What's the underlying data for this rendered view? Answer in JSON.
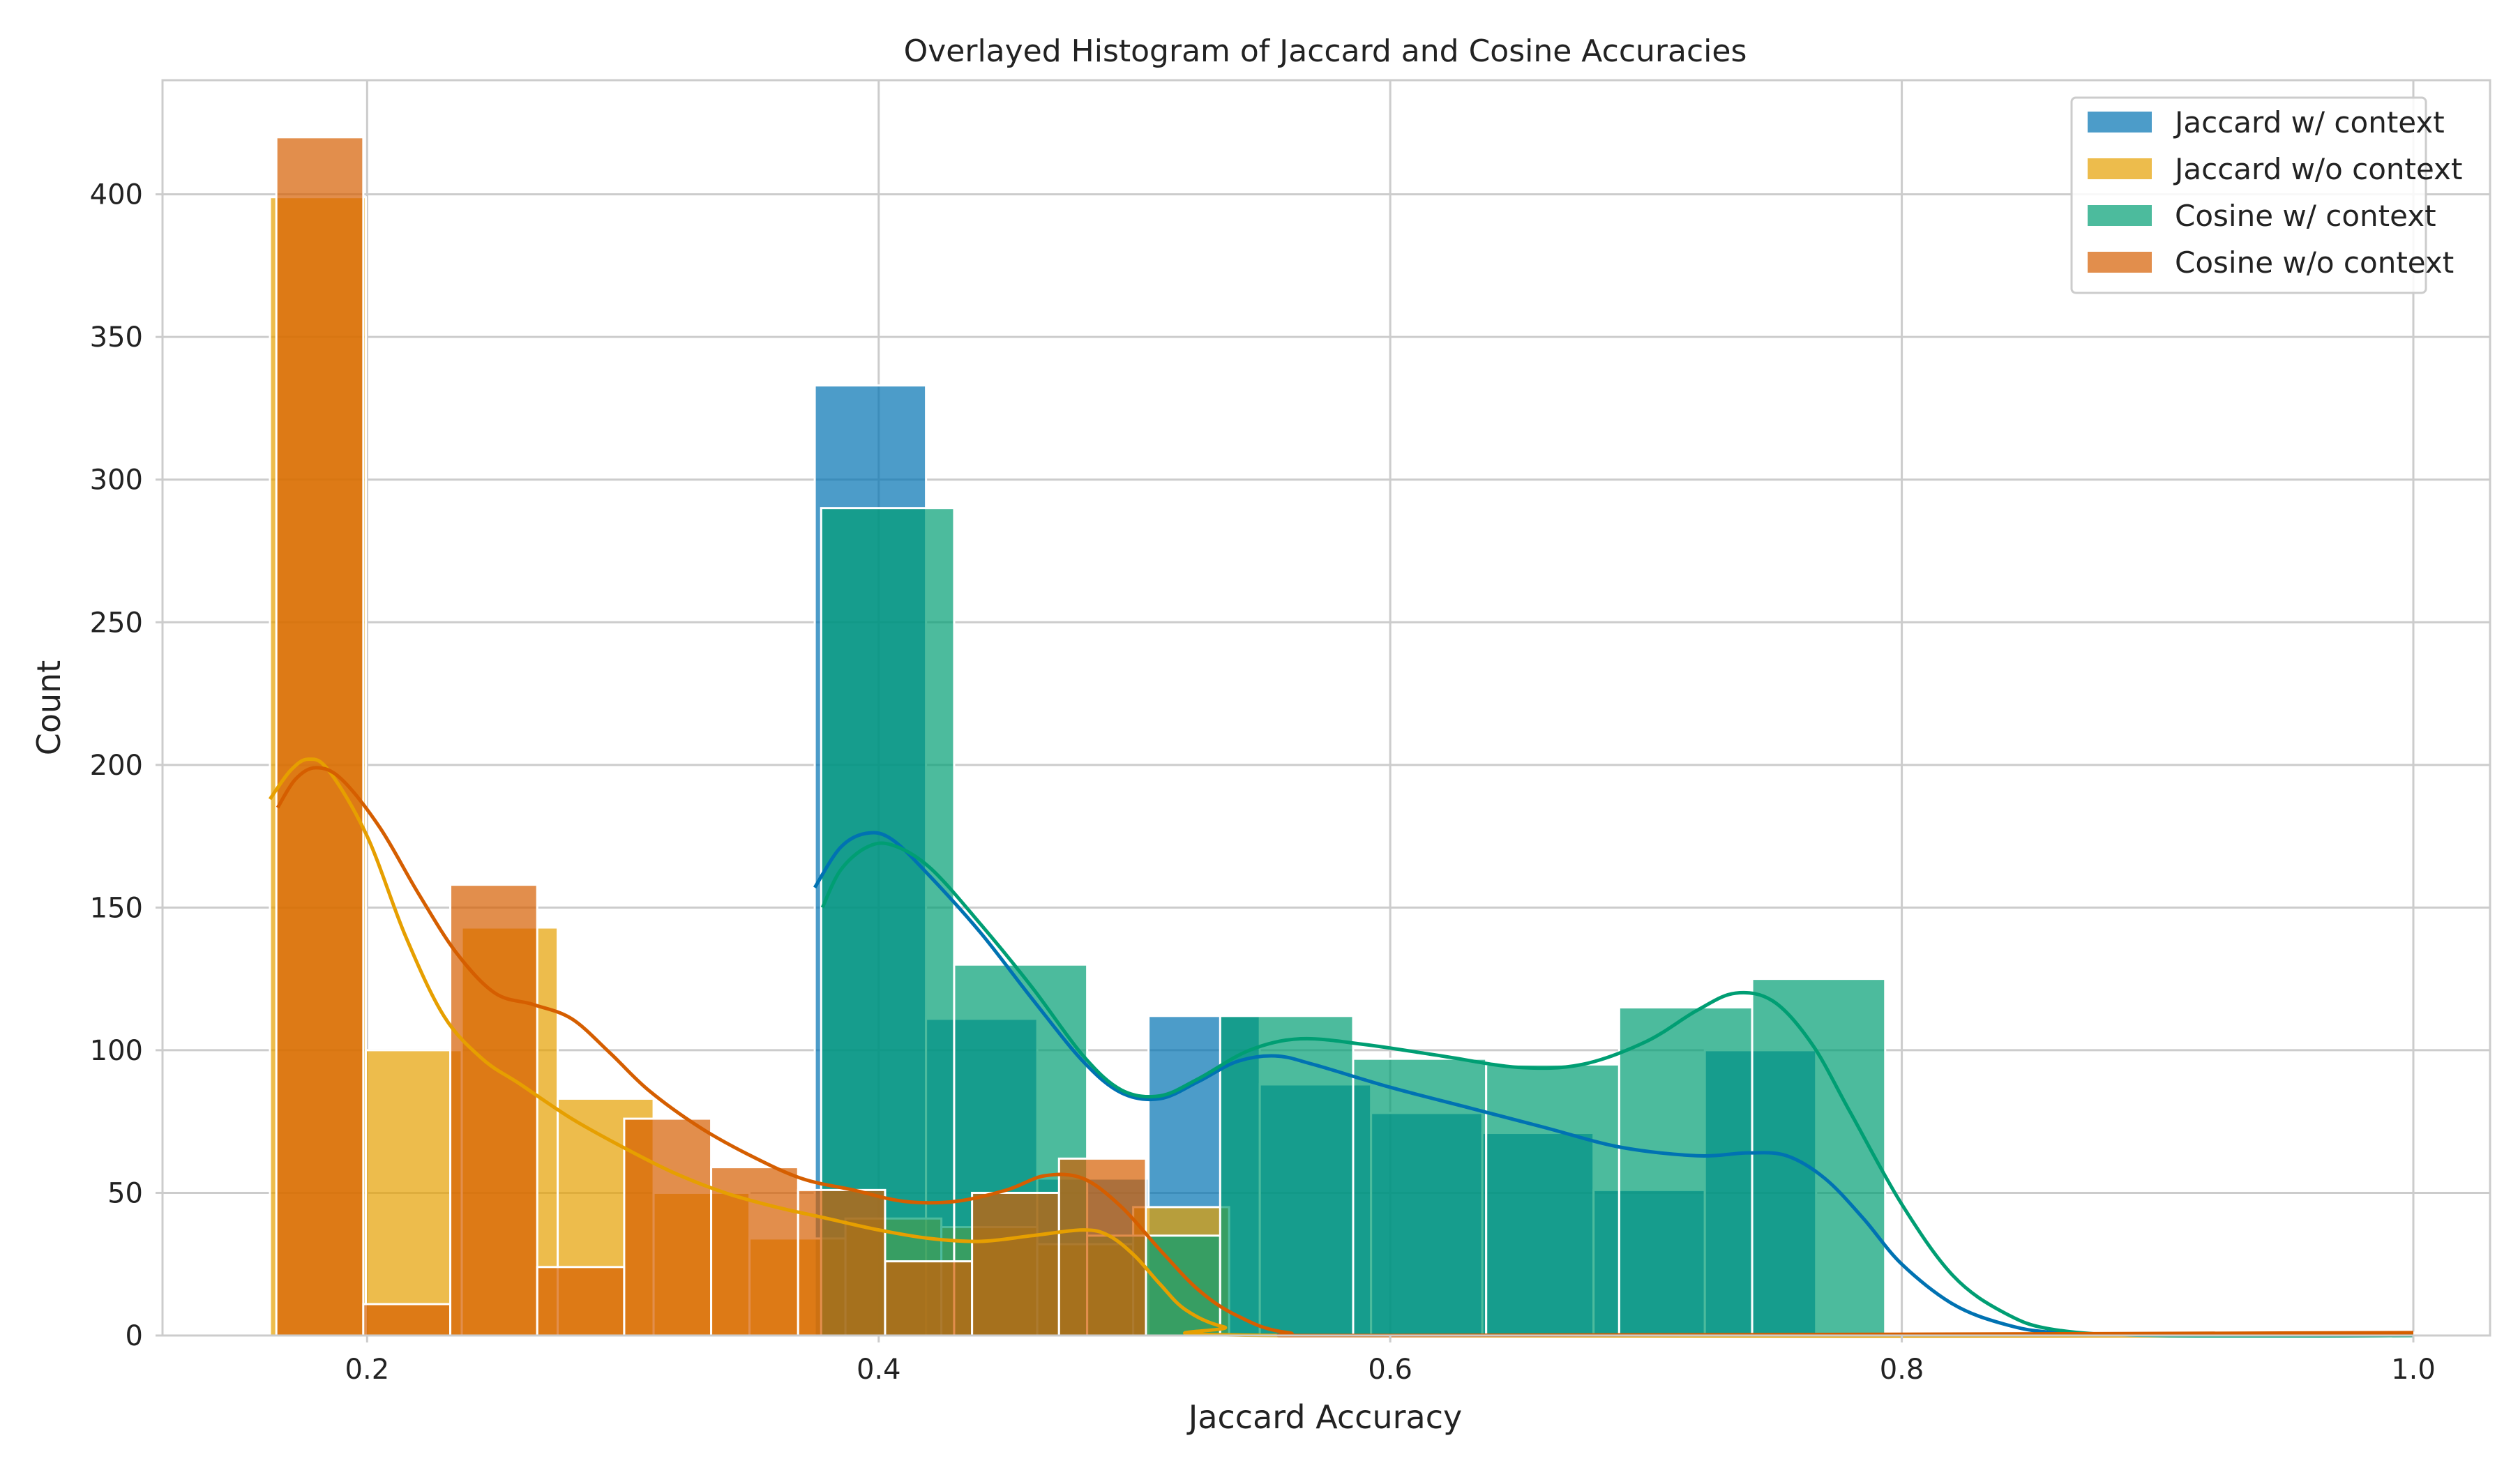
{
  "chart_data": {
    "type": "histogram",
    "title": "Overlayed Histogram of Jaccard and Cosine Accuracies",
    "xlabel": "Jaccard Accuracy",
    "ylabel": "Count",
    "xlim": [
      0.12,
      1.03
    ],
    "ylim": [
      0,
      440
    ],
    "xticks": [
      "0.2",
      "0.4",
      "0.6",
      "0.8",
      "1.0"
    ],
    "xtick_values": [
      0.2,
      0.4,
      0.6,
      0.8,
      1.0
    ],
    "yticks": [
      "0",
      "50",
      "100",
      "150",
      "200",
      "250",
      "300",
      "350",
      "400"
    ],
    "ytick_values": [
      0,
      50,
      100,
      150,
      200,
      250,
      300,
      350,
      400
    ],
    "grid": true,
    "legend_position": "top-right",
    "series": [
      {
        "name": "Jaccard w/ context",
        "color": "#0072b2",
        "bins": [
          {
            "x0": 0.375,
            "x1": 0.4185,
            "count": 333
          },
          {
            "x0": 0.4185,
            "x1": 0.462,
            "count": 111
          },
          {
            "x0": 0.462,
            "x1": 0.5055,
            "count": 55
          },
          {
            "x0": 0.5055,
            "x1": 0.549,
            "count": 112
          },
          {
            "x0": 0.549,
            "x1": 0.5925,
            "count": 88
          },
          {
            "x0": 0.5925,
            "x1": 0.636,
            "count": 78
          },
          {
            "x0": 0.636,
            "x1": 0.6795,
            "count": 71
          },
          {
            "x0": 0.6795,
            "x1": 0.723,
            "count": 51
          },
          {
            "x0": 0.723,
            "x1": 0.7665,
            "count": 100
          }
        ],
        "kde": [
          [
            0.375,
            157
          ],
          [
            0.385,
            171
          ],
          [
            0.395,
            176
          ],
          [
            0.405,
            174
          ],
          [
            0.42,
            161
          ],
          [
            0.44,
            141
          ],
          [
            0.46,
            118
          ],
          [
            0.48,
            96
          ],
          [
            0.495,
            85
          ],
          [
            0.51,
            83
          ],
          [
            0.525,
            89
          ],
          [
            0.54,
            96
          ],
          [
            0.555,
            98
          ],
          [
            0.57,
            95
          ],
          [
            0.6,
            87
          ],
          [
            0.63,
            80
          ],
          [
            0.66,
            73
          ],
          [
            0.69,
            66
          ],
          [
            0.72,
            63
          ],
          [
            0.74,
            64
          ],
          [
            0.755,
            63
          ],
          [
            0.77,
            55
          ],
          [
            0.785,
            41
          ],
          [
            0.8,
            25
          ],
          [
            0.82,
            11
          ],
          [
            0.84,
            4
          ],
          [
            0.86,
            1
          ],
          [
            0.9,
            0
          ],
          [
            1.0,
            0
          ]
        ]
      },
      {
        "name": "Jaccard w/o context",
        "color": "#e69f00",
        "bins": [
          {
            "x0": 0.162,
            "x1": 0.1995,
            "count": 399
          },
          {
            "x0": 0.1995,
            "x1": 0.237,
            "count": 100
          },
          {
            "x0": 0.237,
            "x1": 0.2745,
            "count": 143
          },
          {
            "x0": 0.2745,
            "x1": 0.312,
            "count": 83
          },
          {
            "x0": 0.312,
            "x1": 0.3495,
            "count": 50
          },
          {
            "x0": 0.3495,
            "x1": 0.387,
            "count": 34
          },
          {
            "x0": 0.387,
            "x1": 0.4245,
            "count": 41
          },
          {
            "x0": 0.4245,
            "x1": 0.462,
            "count": 38
          },
          {
            "x0": 0.462,
            "x1": 0.4995,
            "count": 32
          },
          {
            "x0": 0.4995,
            "x1": 0.537,
            "count": 45
          }
        ],
        "kde": [
          [
            0.162,
            188
          ],
          [
            0.17,
            198
          ],
          [
            0.177,
            202
          ],
          [
            0.185,
            198
          ],
          [
            0.2,
            175
          ],
          [
            0.215,
            140
          ],
          [
            0.23,
            112
          ],
          [
            0.245,
            97
          ],
          [
            0.26,
            88
          ],
          [
            0.28,
            76
          ],
          [
            0.3,
            66
          ],
          [
            0.32,
            57
          ],
          [
            0.34,
            50
          ],
          [
            0.36,
            45
          ],
          [
            0.38,
            41
          ],
          [
            0.4,
            37
          ],
          [
            0.42,
            34
          ],
          [
            0.44,
            33
          ],
          [
            0.46,
            35
          ],
          [
            0.48,
            37
          ],
          [
            0.49,
            35
          ],
          [
            0.5,
            28
          ],
          [
            0.51,
            18
          ],
          [
            0.52,
            9
          ],
          [
            0.535,
            3
          ],
          [
            0.56,
            0
          ],
          [
            1.0,
            0
          ]
        ]
      },
      {
        "name": "Cosine w/ context",
        "color": "#009e73",
        "bins": [
          {
            "x0": 0.3775,
            "x1": 0.4295,
            "count": 290
          },
          {
            "x0": 0.4295,
            "x1": 0.4815,
            "count": 130
          },
          {
            "x0": 0.4815,
            "x1": 0.5335,
            "count": 35
          },
          {
            "x0": 0.5335,
            "x1": 0.5855,
            "count": 112
          },
          {
            "x0": 0.5855,
            "x1": 0.6375,
            "count": 97
          },
          {
            "x0": 0.6375,
            "x1": 0.6895,
            "count": 95
          },
          {
            "x0": 0.6895,
            "x1": 0.7415,
            "count": 115
          },
          {
            "x0": 0.7415,
            "x1": 0.7935,
            "count": 125
          }
        ],
        "kde": [
          [
            0.378,
            150
          ],
          [
            0.385,
            163
          ],
          [
            0.395,
            171
          ],
          [
            0.405,
            172
          ],
          [
            0.42,
            164
          ],
          [
            0.44,
            144
          ],
          [
            0.46,
            122
          ],
          [
            0.48,
            98
          ],
          [
            0.495,
            86
          ],
          [
            0.51,
            84
          ],
          [
            0.525,
            90
          ],
          [
            0.545,
            100
          ],
          [
            0.565,
            104
          ],
          [
            0.59,
            102
          ],
          [
            0.62,
            98
          ],
          [
            0.65,
            94
          ],
          [
            0.675,
            95
          ],
          [
            0.7,
            103
          ],
          [
            0.72,
            114
          ],
          [
            0.735,
            120
          ],
          [
            0.75,
            117
          ],
          [
            0.765,
            102
          ],
          [
            0.78,
            78
          ],
          [
            0.8,
            46
          ],
          [
            0.82,
            21
          ],
          [
            0.84,
            8
          ],
          [
            0.86,
            2
          ],
          [
            0.9,
            0
          ],
          [
            1.0,
            0
          ]
        ]
      },
      {
        "name": "Cosine w/o context",
        "color": "#d55e00",
        "bins": [
          {
            "x0": 0.1645,
            "x1": 0.1985,
            "count": 420
          },
          {
            "x0": 0.1985,
            "x1": 0.2325,
            "count": 11
          },
          {
            "x0": 0.2325,
            "x1": 0.2665,
            "count": 158
          },
          {
            "x0": 0.2665,
            "x1": 0.3005,
            "count": 24
          },
          {
            "x0": 0.3005,
            "x1": 0.3345,
            "count": 76
          },
          {
            "x0": 0.3345,
            "x1": 0.3685,
            "count": 59
          },
          {
            "x0": 0.3685,
            "x1": 0.4025,
            "count": 51
          },
          {
            "x0": 0.4025,
            "x1": 0.4365,
            "count": 26
          },
          {
            "x0": 0.4365,
            "x1": 0.4705,
            "count": 50
          },
          {
            "x0": 0.4705,
            "x1": 0.5045,
            "count": 62
          },
          {
            "x0": 0.98,
            "x1": 1.0,
            "count": 1
          }
        ],
        "kde": [
          [
            0.165,
            185
          ],
          [
            0.172,
            195
          ],
          [
            0.18,
            199
          ],
          [
            0.19,
            195
          ],
          [
            0.205,
            178
          ],
          [
            0.22,
            155
          ],
          [
            0.235,
            134
          ],
          [
            0.25,
            120
          ],
          [
            0.265,
            116
          ],
          [
            0.28,
            111
          ],
          [
            0.295,
            99
          ],
          [
            0.31,
            86
          ],
          [
            0.33,
            73
          ],
          [
            0.35,
            63
          ],
          [
            0.37,
            55
          ],
          [
            0.39,
            51
          ],
          [
            0.41,
            47
          ],
          [
            0.43,
            47
          ],
          [
            0.45,
            51
          ],
          [
            0.465,
            56
          ],
          [
            0.48,
            55
          ],
          [
            0.495,
            45
          ],
          [
            0.51,
            30
          ],
          [
            0.525,
            16
          ],
          [
            0.54,
            7
          ],
          [
            0.56,
            1
          ],
          [
            0.6,
            0
          ],
          [
            1.0,
            1
          ]
        ]
      }
    ]
  }
}
